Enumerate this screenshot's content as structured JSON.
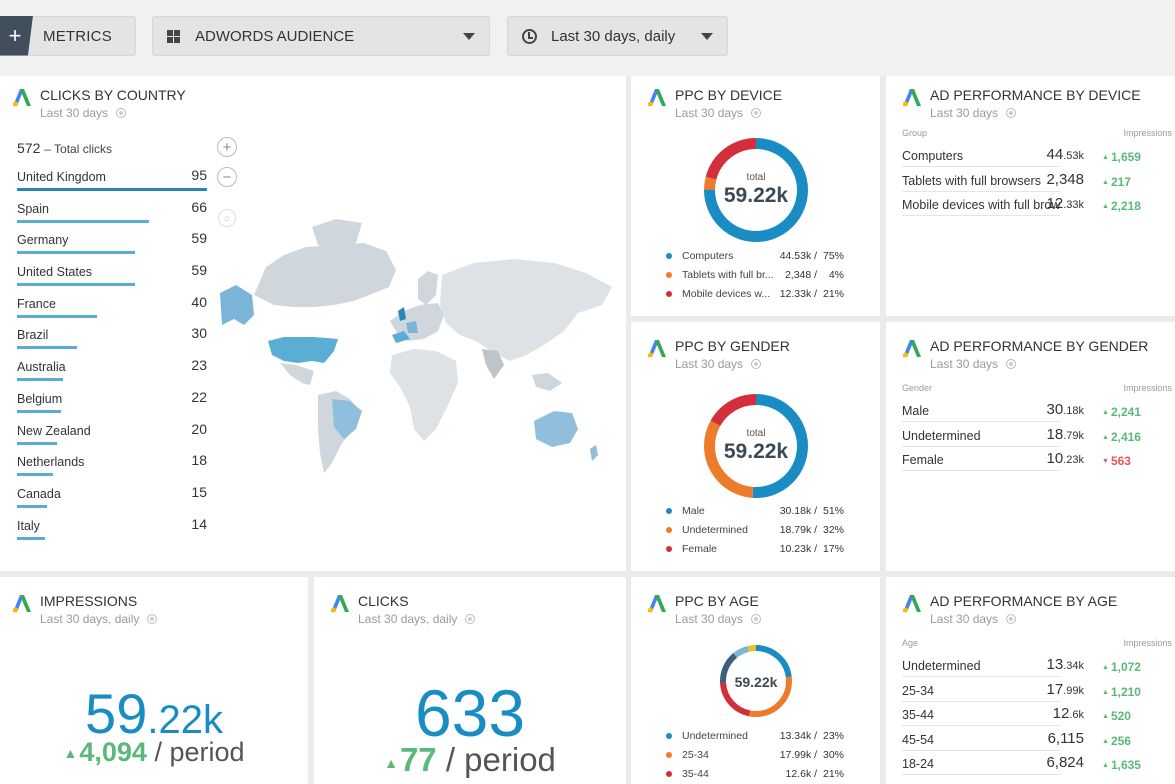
{
  "toolbar": {
    "add_icon": "plus-icon",
    "metrics_label": "METRICS",
    "audience_label": "ADWORDS AUDIENCE",
    "date_label": "Last 30 days, daily"
  },
  "colors": {
    "blue": "#1a8cc4",
    "orange": "#ec7c2c",
    "red": "#d32f3a",
    "up": "#5cb87a",
    "down": "#e05a5a"
  },
  "clicks_by_country": {
    "title": "CLICKS BY COUNTRY",
    "subtitle": "Last 30 days",
    "total_value": "572",
    "total_label": "– Total clicks",
    "countries": [
      {
        "name": "United Kingdom",
        "value": 95
      },
      {
        "name": "Spain",
        "value": 66
      },
      {
        "name": "Germany",
        "value": 59
      },
      {
        "name": "United States",
        "value": 59
      },
      {
        "name": "France",
        "value": 40
      },
      {
        "name": "Brazil",
        "value": 30
      },
      {
        "name": "Australia",
        "value": 23
      },
      {
        "name": "Belgium",
        "value": 22
      },
      {
        "name": "New Zealand",
        "value": 20
      },
      {
        "name": "Netherlands",
        "value": 18
      },
      {
        "name": "Canada",
        "value": 15
      },
      {
        "name": "Italy",
        "value": 14
      }
    ]
  },
  "ppc_by_device": {
    "title": "PPC BY DEVICE",
    "subtitle": "Last 30 days",
    "center_label": "total",
    "center_value": "59.22k",
    "items": [
      {
        "name": "Computers",
        "value": "44.53k",
        "pct": "75%",
        "share": 75,
        "color": "#1a8cc4"
      },
      {
        "name": "Tablets with full br...",
        "value": "2,348",
        "pct": "4%",
        "share": 4,
        "color": "#ec7c2c"
      },
      {
        "name": "Mobile devices w...",
        "value": "12.33k",
        "pct": "21%",
        "share": 21,
        "color": "#d32f3a"
      }
    ]
  },
  "ppc_by_gender": {
    "title": "PPC BY GENDER",
    "subtitle": "Last 30 days",
    "center_label": "total",
    "center_value": "59.22k",
    "items": [
      {
        "name": "Male",
        "value": "30.18k",
        "pct": "51%",
        "share": 51,
        "color": "#1a8cc4"
      },
      {
        "name": "Undetermined",
        "value": "18.79k",
        "pct": "32%",
        "share": 32,
        "color": "#ec7c2c"
      },
      {
        "name": "Female",
        "value": "10.23k",
        "pct": "17%",
        "share": 17,
        "color": "#d32f3a"
      }
    ]
  },
  "ppc_by_age": {
    "title": "PPC BY AGE",
    "subtitle": "Last 30 days",
    "center_value": "59.22k",
    "items": [
      {
        "name": "Undetermined",
        "value": "13.34k",
        "pct": "23%",
        "share": 23,
        "color": "#1a8cc4"
      },
      {
        "name": "25-34",
        "value": "17.99k",
        "pct": "30%",
        "share": 30,
        "color": "#ec7c2c"
      },
      {
        "name": "35-44",
        "value": "12.6k",
        "pct": "21%",
        "share": 21,
        "color": "#d32f3a"
      },
      {
        "name": "",
        "value": "",
        "pct": "",
        "share": 15,
        "color": "#3d5f7f"
      },
      {
        "name": "",
        "value": "",
        "pct": "",
        "share": 7,
        "color": "#7fb3d5"
      },
      {
        "name": "",
        "value": "",
        "pct": "",
        "share": 4,
        "color": "#e8c22e"
      }
    ]
  },
  "ad_perf_device": {
    "title": "AD PERFORMANCE BY DEVICE",
    "subtitle": "Last 30 days",
    "col_left": "Group",
    "col_right": "Impressions",
    "rows": [
      {
        "name": "Computers",
        "main": "44",
        "small": ".53k",
        "delta": "1,659",
        "dir": "up"
      },
      {
        "name": "Tablets with full browsers",
        "main": "2,348",
        "small": "",
        "delta": "217",
        "dir": "up"
      },
      {
        "name": "Mobile devices with full brow",
        "main": "12",
        "small": ".33k",
        "delta": "2,218",
        "dir": "up"
      }
    ]
  },
  "ad_perf_gender": {
    "title": "AD PERFORMANCE BY GENDER",
    "subtitle": "Last 30 days",
    "col_left": "Gender",
    "col_right": "Impressions",
    "rows": [
      {
        "name": "Male",
        "main": "30",
        "small": ".18k",
        "delta": "2,241",
        "dir": "up"
      },
      {
        "name": "Undetermined",
        "main": "18",
        "small": ".79k",
        "delta": "2,416",
        "dir": "up"
      },
      {
        "name": "Female",
        "main": "10",
        "small": ".23k",
        "delta": "563",
        "dir": "down"
      }
    ]
  },
  "ad_perf_age": {
    "title": "AD PERFORMANCE BY AGE",
    "subtitle": "Last 30 days",
    "col_left": "Age",
    "col_right": "Impressions",
    "rows": [
      {
        "name": "Undetermined",
        "main": "13",
        "small": ".34k",
        "delta": "1,072",
        "dir": "up"
      },
      {
        "name": "25-34",
        "main": "17",
        "small": ".99k",
        "delta": "1,210",
        "dir": "up"
      },
      {
        "name": "35-44",
        "main": "12",
        "small": ".6k",
        "delta": "520",
        "dir": "up"
      },
      {
        "name": "45-54",
        "main": "6,115",
        "small": "",
        "delta": "256",
        "dir": "up"
      },
      {
        "name": "18-24",
        "main": "6,824",
        "small": "",
        "delta": "1,635",
        "dir": "up"
      }
    ]
  },
  "impressions": {
    "title": "IMPRESSIONS",
    "subtitle": "Last 30 days, daily",
    "value_main": "59",
    "value_small": ".22k",
    "delta": "4,094",
    "period": "/ period"
  },
  "clicks": {
    "title": "CLICKS",
    "subtitle": "Last 30 days, daily",
    "value_main": "633",
    "value_small": "",
    "delta": "77",
    "period": "/ period"
  }
}
